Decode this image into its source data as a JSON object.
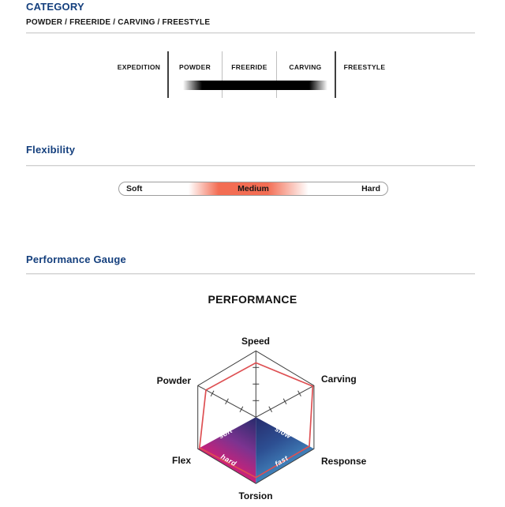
{
  "category": {
    "heading": "CATEGORY",
    "subtitle": "POWDER / FREERIDE / CARVING / FREESTYLE",
    "scale": {
      "labels": [
        "EXPEDITION",
        "POWDER",
        "FREERIDE",
        "CARVING",
        "FREESTYLE"
      ],
      "highlight": {
        "from": "POWDER",
        "to": "CARVING",
        "bar_color": "#000000"
      }
    }
  },
  "flexibility": {
    "heading": "Flexibility",
    "labels": [
      "Soft",
      "Medium",
      "Hard"
    ],
    "selected": "Medium",
    "accent_color": "#f2654a"
  },
  "performance": {
    "heading": "Performance Gauge"
  },
  "chart_data": {
    "type": "radar",
    "title": "PERFORMANCE",
    "axes": [
      "Speed",
      "Carving",
      "Response",
      "Torsion",
      "Flex",
      "Powder"
    ],
    "values": [
      0.82,
      0.98,
      0.92,
      0.91,
      0.97,
      0.86
    ],
    "scale_max": 1,
    "ticks_per_axis": 4,
    "series_color": "#de5053",
    "outline_color": "#3d3d3d",
    "quadrant_labels": [
      "soft",
      "slow",
      "hard",
      "fast"
    ],
    "diamond_gradient_left": [
      "#262b6c",
      "#7c3390",
      "#d02077"
    ],
    "diamond_gradient_right": [
      "#262b6c",
      "#2d4f92",
      "#4182ba"
    ],
    "legend": "none",
    "grid": "ticks-only"
  },
  "colors": {
    "heading_blue": "#143f7d",
    "rule_gray": "#d6d6d6",
    "text_black": "#161616"
  }
}
